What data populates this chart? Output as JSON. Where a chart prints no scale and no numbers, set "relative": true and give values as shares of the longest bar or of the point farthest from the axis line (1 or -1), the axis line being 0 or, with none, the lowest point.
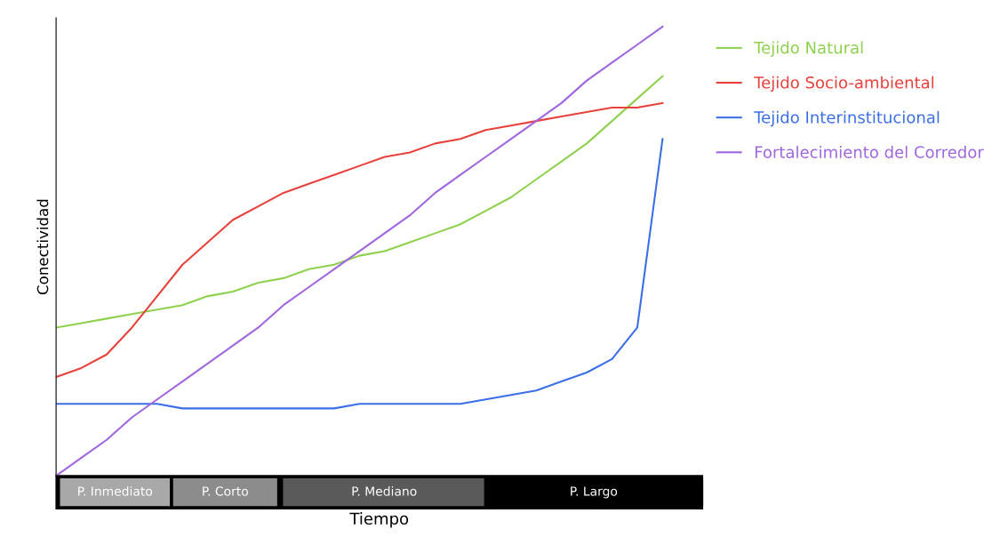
{
  "chart_data": {
    "type": "line",
    "relative": true,
    "xlabel": "Tiempo",
    "ylabel": "Conectividad",
    "categories": [
      null,
      null,
      null,
      null,
      null,
      null,
      null,
      null,
      null,
      null,
      null,
      null,
      null,
      null,
      null,
      null,
      null,
      null,
      null,
      null,
      null,
      null,
      null,
      null,
      null
    ],
    "series": [
      {
        "name": "Tejido Natural",
        "color": "#8fd14f",
        "values": [
          0.33,
          0.34,
          0.35,
          0.36,
          0.37,
          0.38,
          0.4,
          0.41,
          0.43,
          0.44,
          0.46,
          0.47,
          0.49,
          0.5,
          0.52,
          0.54,
          0.56,
          0.59,
          0.62,
          0.66,
          0.7,
          0.74,
          0.79,
          0.84,
          0.89
        ]
      },
      {
        "name": "Tejido Socio-ambiental",
        "color": "#e8413c",
        "values": [
          0.22,
          0.24,
          0.27,
          0.33,
          0.4,
          0.47,
          0.52,
          0.57,
          0.6,
          0.63,
          0.65,
          0.67,
          0.69,
          0.71,
          0.72,
          0.74,
          0.75,
          0.77,
          0.78,
          0.79,
          0.8,
          0.81,
          0.82,
          0.82,
          0.83
        ]
      },
      {
        "name": "Tejido Interinstitucional",
        "color": "#3a6fe8",
        "values": [
          0.16,
          0.16,
          0.16,
          0.16,
          0.16,
          0.15,
          0.15,
          0.15,
          0.15,
          0.15,
          0.15,
          0.15,
          0.16,
          0.16,
          0.16,
          0.16,
          0.16,
          0.17,
          0.18,
          0.19,
          0.21,
          0.23,
          0.26,
          0.33,
          0.75
        ]
      },
      {
        "name": "Fortalecimiento del Corredor",
        "color": "#a066e0",
        "values": [
          0,
          0.04,
          0.08,
          0.13,
          0.17,
          0.21,
          0.25,
          0.29,
          0.33,
          0.38,
          0.42,
          0.46,
          0.5,
          0.54,
          0.58,
          0.63,
          0.67,
          0.71,
          0.75,
          0.79,
          0.83,
          0.88,
          0.92,
          0.96,
          1
        ]
      }
    ],
    "annotations": [
      "P. Inmediato",
      "P. Corto",
      "P. Mediano",
      "P. Largo"
    ],
    "legend": "right",
    "grid": false,
    "marker": "none",
    "line_style": "solid"
  }
}
